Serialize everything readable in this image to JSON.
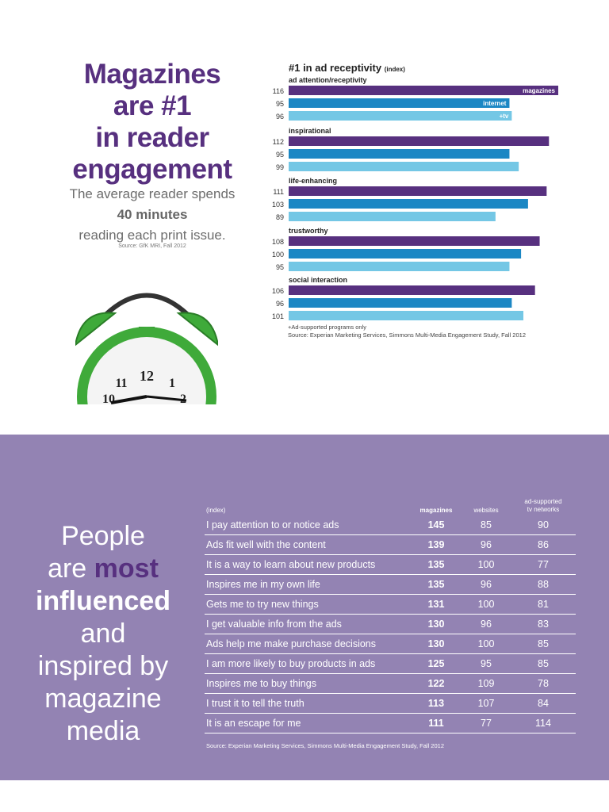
{
  "headline": [
    "Magazines",
    "are #1",
    "in reader",
    "engagement"
  ],
  "subtext": {
    "line1": "The average reader spends",
    "minutes": "40 minutes",
    "line3": "reading each print issue.",
    "source": "Source: GfK MRI, Fall 2012"
  },
  "colors": {
    "magazines": "#57307f",
    "internet": "#1b87c4",
    "tv": "#74c7e5",
    "band": "#9383b3",
    "clock": "#3faa3a"
  },
  "chart_data": {
    "type": "bar",
    "orientation": "horizontal",
    "title": "#1 in ad receptivity",
    "title_suffix": "(index)",
    "groups": [
      {
        "name": "ad attention/receptivity",
        "values": [
          116,
          95,
          96
        ]
      },
      {
        "name": "inspirational",
        "values": [
          112,
          95,
          99
        ]
      },
      {
        "name": "life-enhancing",
        "values": [
          111,
          103,
          89
        ]
      },
      {
        "name": "trustworthy",
        "values": [
          108,
          100,
          95
        ]
      },
      {
        "name": "social interaction",
        "values": [
          106,
          96,
          101
        ]
      }
    ],
    "series": [
      "magazines",
      "internet",
      "+tv"
    ],
    "footnote": "+Ad-supported programs only",
    "source": "Source: Experian Marketing Services, Simmons Multi-Media Engagement Study, Fall 2012"
  },
  "people": {
    "w1": "People",
    "w2": "are",
    "w3": "most",
    "w4": "influenced",
    "w5": "and",
    "w6": "inspired by",
    "w7": "magazine",
    "w8": "media"
  },
  "table": {
    "index_label": "(index)",
    "columns": [
      "magazines",
      "websites",
      "ad-supported",
      "tv networks"
    ],
    "rows": [
      [
        "I pay attention to or notice ads",
        "145",
        "85",
        "90"
      ],
      [
        "Ads fit well with the content",
        "139",
        "96",
        "86"
      ],
      [
        "It is a way to learn about new products",
        "135",
        "100",
        "77"
      ],
      [
        "Inspires me in my own life",
        "135",
        "96",
        "88"
      ],
      [
        "Gets me to try new things",
        "131",
        "100",
        "81"
      ],
      [
        "I get valuable info from the ads",
        "130",
        "96",
        "83"
      ],
      [
        "Ads help me make purchase decisions",
        "130",
        "100",
        "85"
      ],
      [
        "I am more likely to buy products in ads",
        "125",
        "95",
        "85"
      ],
      [
        "Inspires me to buy things",
        "122",
        "109",
        "78"
      ],
      [
        "I trust it to tell the truth",
        "113",
        "107",
        "84"
      ],
      [
        "It is an escape for me",
        "111",
        "77",
        "114"
      ]
    ],
    "source": "Source: Experian Marketing Services, Simmons Multi-Media Engagement Study, Fall 2012"
  }
}
